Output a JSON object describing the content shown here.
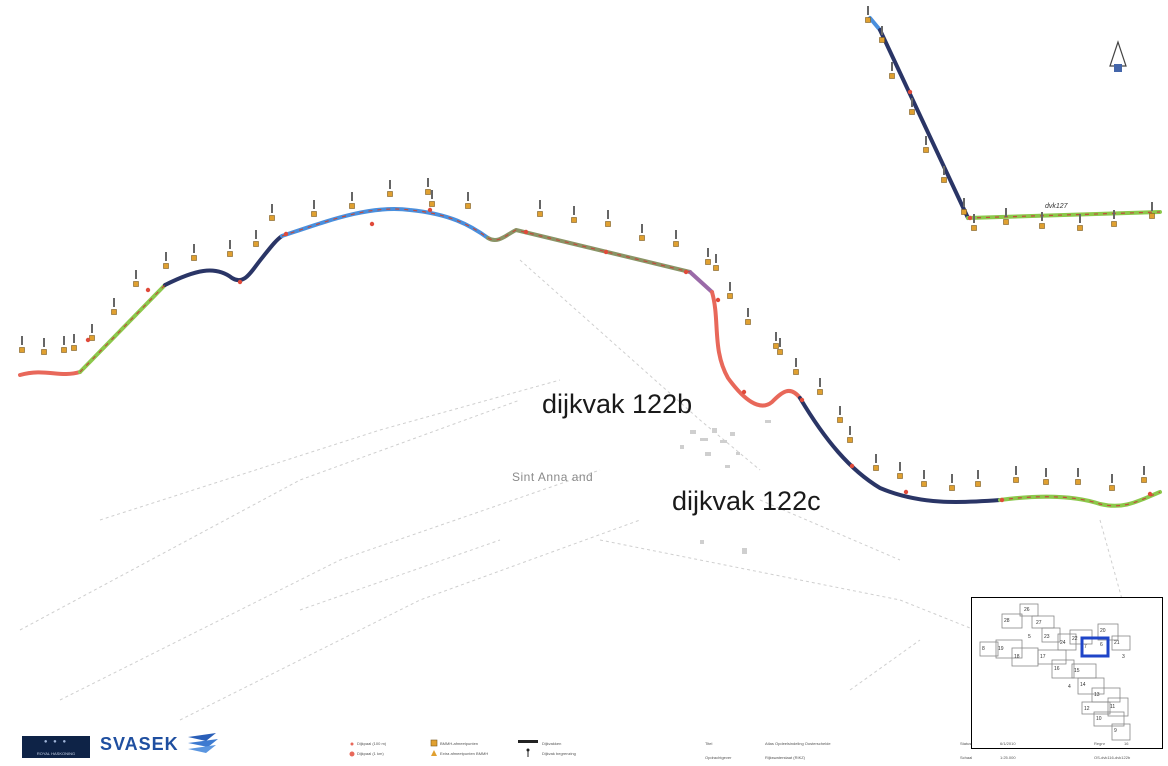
{
  "labels": {
    "dijkvak_b": "dijkvak 122b",
    "dijkvak_c": "dijkvak 122c",
    "place": "Sint Anna and",
    "section_label": "dvk127"
  },
  "legend": {
    "item1": "Dijkpaal (100 m)",
    "item2": "Dijkpaal (1 km)",
    "item3": "BMMH-afmeetpunten",
    "item4": "Extra afmeetpunten BMMH",
    "item5": "Dijkvakken",
    "item6": "Dijkvak begrenzing"
  },
  "titleblock": {
    "titel_label": "Titel",
    "titel_value": "Atlas Opdeelsindeling Oosterschelde",
    "opdrachtgever_label": "Opdrachtgever",
    "opdrachtgever_value": "Rijkswaterstaat (RIKZ)",
    "status_label": "Status",
    "status_value": "6/1/2010",
    "schaal_label": "Schaal",
    "schaal_value": "1:25.000",
    "regnr_label": "Regnr",
    "regnr_value": "16",
    "file_value": "OS-dvk116-dvk122b"
  },
  "inset_numbers": [
    "26",
    "28",
    "27",
    "23",
    "24",
    "22",
    "20",
    "21",
    "19",
    "18",
    "17",
    "16",
    "15",
    "14",
    "13",
    "12",
    "11",
    "10",
    "9",
    "8",
    "7",
    "6",
    "5",
    "4",
    "3"
  ],
  "colors": {
    "red": "#e8685a",
    "green": "#8cc84b",
    "navy": "#2a3566",
    "blue": "#4a8fdd",
    "marker": "#e0a030",
    "inset_highlight": "#1f45c8"
  }
}
